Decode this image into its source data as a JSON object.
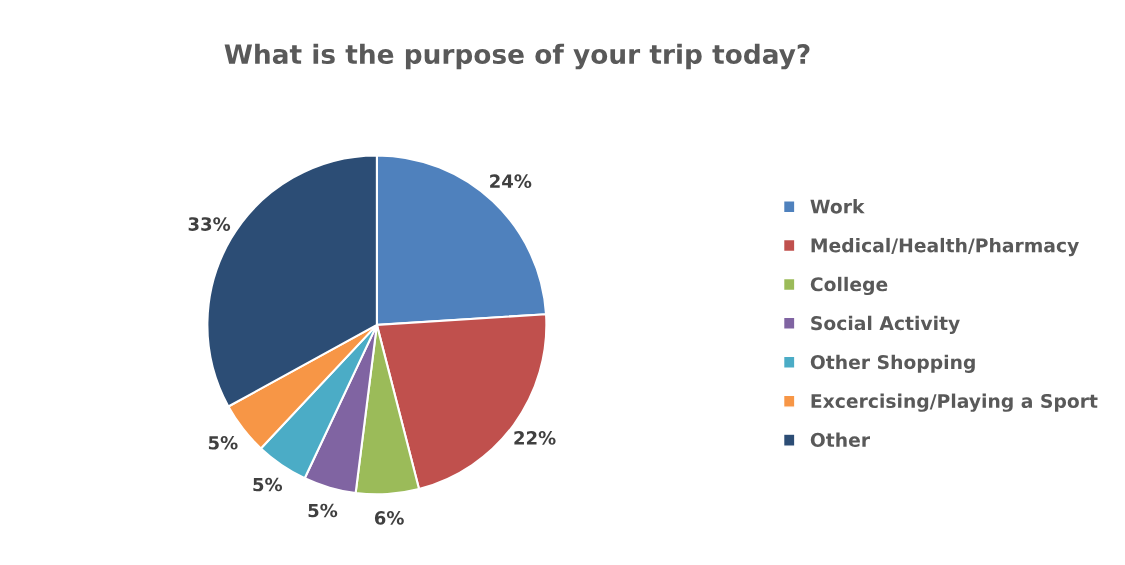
{
  "chart_data": {
    "type": "pie",
    "title": "What is the purpose of your trip today?",
    "categories": [
      "Work",
      "Medical/Health/Pharmacy",
      "College",
      "Social Activity",
      "Other Shopping",
      "Excercising/Playing a Sport",
      "Other"
    ],
    "values": [
      24,
      22,
      6,
      5,
      5,
      5,
      33
    ],
    "value_labels": [
      "24%",
      "22%",
      "6%",
      "5%",
      "5%",
      "5%",
      "33%"
    ],
    "colors": [
      "#4f81bd",
      "#c0504d",
      "#9bbb59",
      "#8064a2",
      "#4bacc6",
      "#f79646",
      "#2c4d75"
    ],
    "legend": "right"
  }
}
